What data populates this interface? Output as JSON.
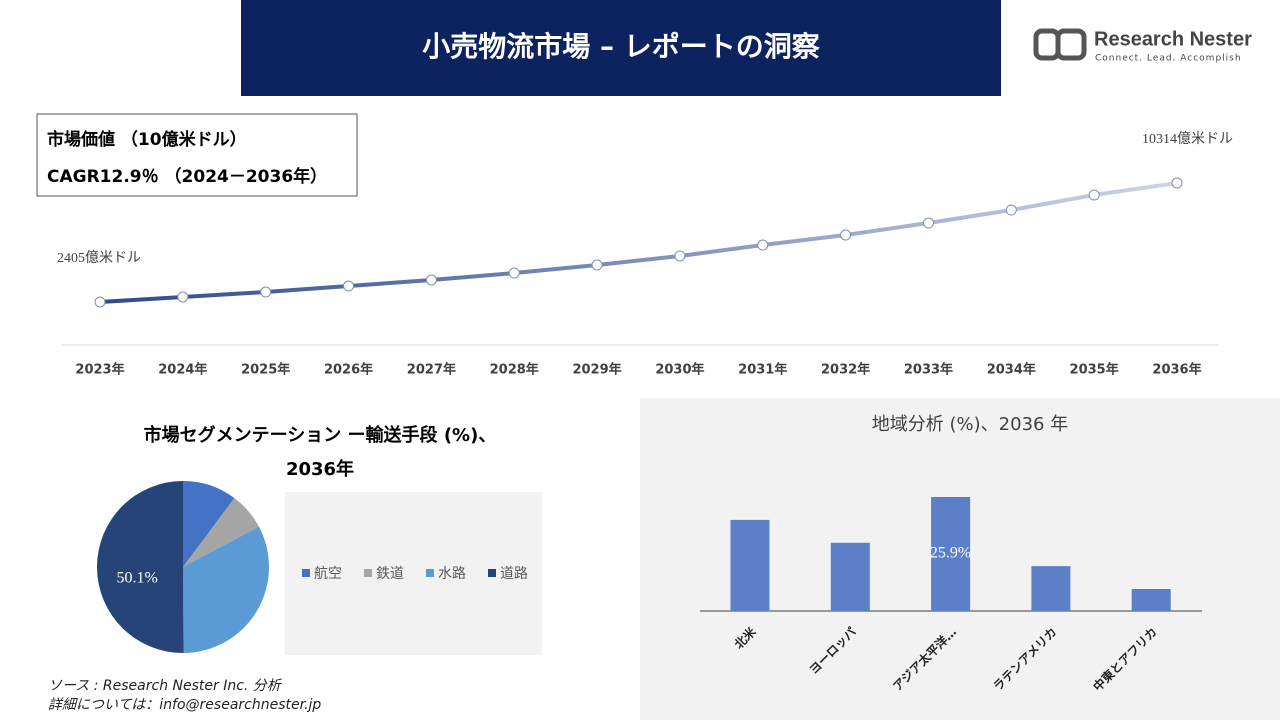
{
  "header": {
    "title": "小売物流市場 – レポートの洞察",
    "logo": "Research Nester",
    "tagline": "Connect. Lead. Accomplish"
  },
  "chart_data": [
    {
      "type": "line",
      "annotations": [
        "市場価値 （10億米ドル）",
        "CAGR12.9％ （2024－2036年）"
      ],
      "categories": [
        "2023年",
        "2024年",
        "2025年",
        "2026年",
        "2027年",
        "2028年",
        "2029年",
        "2030年",
        "2031年",
        "2032年",
        "2033年",
        "2034年",
        "2035年",
        "2036年"
      ],
      "values": [
        2405,
        2737,
        3069,
        3468,
        3867,
        4332,
        4864,
        5462,
        6192,
        6857,
        7654,
        8518,
        9515,
        10314
      ],
      "value_labels": [
        "2405億米ドル",
        null,
        null,
        null,
        null,
        null,
        null,
        null,
        null,
        null,
        null,
        null,
        null,
        "10314億米ドル"
      ],
      "color": "#2e4a8c",
      "color_end": "#cdd6e8"
    },
    {
      "type": "pie",
      "title": "市場セグメンテーション ー輸送手段 (%)、2036年",
      "categories": [
        "航空",
        "鉄道",
        "水路",
        "道路"
      ],
      "values": [
        10.2,
        7.0,
        32.7,
        50.1
      ],
      "value_labels": [
        null,
        null,
        null,
        "50.1%"
      ],
      "colors": [
        "#4472c4",
        "#a5a5a5",
        "#5b9bd5",
        "#264478"
      ]
    },
    {
      "type": "bar",
      "title": "地域分析 (%)、2036 年",
      "categories": [
        "北米",
        "ヨーロッパ",
        "アジア太平洋…",
        "ラテンアメリカ",
        "中東とアフリカ"
      ],
      "values": [
        20.7,
        15.5,
        25.9,
        10.2,
        5.0
      ],
      "value_labels": [
        null,
        null,
        "25.9%",
        null,
        null
      ],
      "color": "#5b80c8"
    }
  ],
  "source": [
    "ソース : Research Nester Inc. 分析",
    "詳細については：info@researchnester.jp"
  ]
}
